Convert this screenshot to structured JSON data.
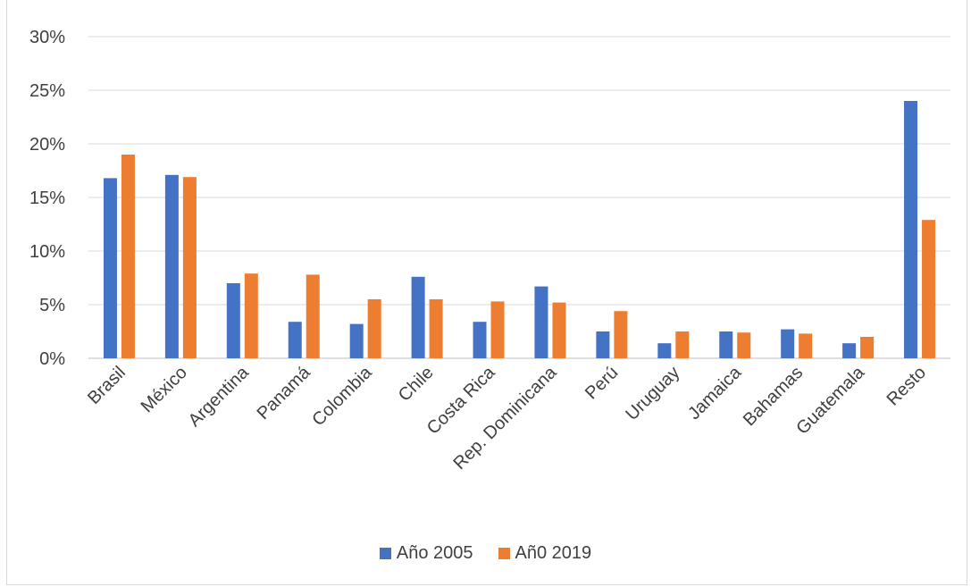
{
  "chart_data": {
    "type": "bar",
    "title": "",
    "categories": [
      "Brasil",
      "México",
      "Argentina",
      "Panamá",
      "Colombia",
      "Chile",
      "Costa Rica",
      "Rep. Dominicana",
      "Perú",
      "Uruguay",
      "Jamaica",
      "Bahamas",
      "Guatemala",
      "Resto"
    ],
    "series": [
      {
        "name": "Año 2005",
        "color": "#4472c4",
        "values": [
          16.8,
          17.1,
          7.0,
          3.4,
          3.2,
          7.6,
          3.4,
          6.7,
          2.5,
          1.4,
          2.5,
          2.7,
          1.4,
          24.0
        ]
      },
      {
        "name": "Añ0 2019",
        "color": "#ed7d31",
        "values": [
          19.0,
          16.9,
          7.9,
          7.8,
          5.5,
          5.5,
          5.3,
          5.2,
          4.4,
          2.5,
          2.4,
          2.3,
          2.0,
          12.9
        ]
      }
    ],
    "ylim": [
      0,
      30
    ],
    "yticks": [
      "0%",
      "5%",
      "10%",
      "15%",
      "20%",
      "25%",
      "30%"
    ],
    "ytick_values": [
      0,
      5,
      10,
      15,
      20,
      25,
      30
    ],
    "grid": true,
    "legend_position": "bottom"
  }
}
